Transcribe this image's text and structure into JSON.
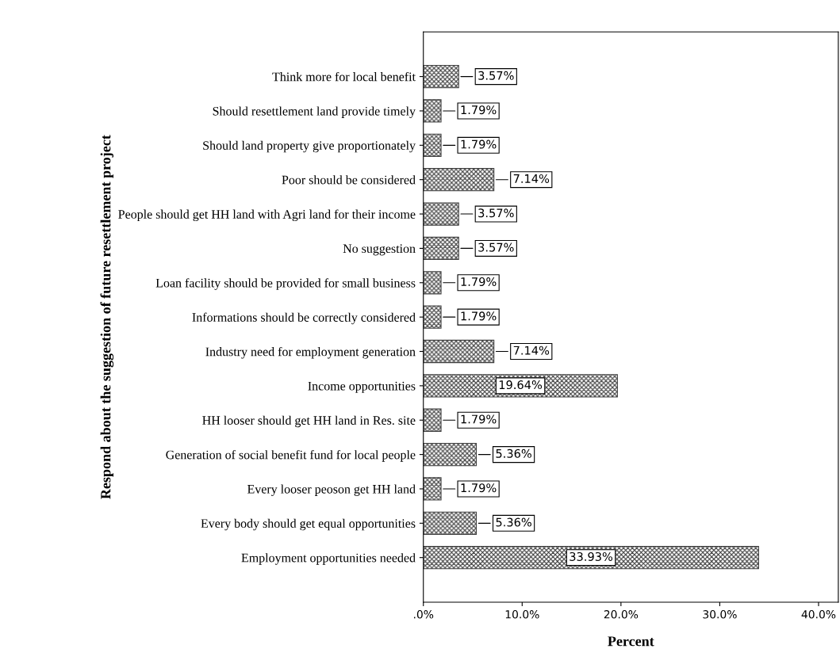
{
  "chart_data": {
    "type": "bar",
    "orientation": "horizontal",
    "xlabel": "Percent",
    "ylabel": "Respond about the suggestion of future resettlement project",
    "categories": [
      "Think more for local benefit",
      "Should resettlement land provide timely",
      "Should land property give proportionately",
      "Poor should be considered",
      "People should get HH land with Agri land for their income",
      "No suggestion",
      "Loan facility should be provided for small business",
      "Informations should be correctly considered",
      "Industry need for employment generation",
      "Income opportunities",
      "HH looser should get HH land in Res. site",
      "Generation of social benefit fund for local people",
      "Every looser peoson get HH land",
      "Every body should get equal opportunities",
      "Employment opportunities needed"
    ],
    "values": [
      3.57,
      1.79,
      1.79,
      7.14,
      3.57,
      3.57,
      1.79,
      1.79,
      7.14,
      19.64,
      1.79,
      5.36,
      1.79,
      5.36,
      33.93
    ],
    "value_labels": [
      "3.57%",
      "1.79%",
      "1.79%",
      "7.14%",
      "3.57%",
      "3.57%",
      "1.79%",
      "1.79%",
      "7.14%",
      "19.64%",
      "1.79%",
      "5.36%",
      "1.79%",
      "5.36%",
      "33.93%"
    ],
    "color": "#404040",
    "xlim": [
      0,
      42
    ],
    "xticks": [
      {
        "value": 0,
        "label": ".0%"
      },
      {
        "value": 10,
        "label": "10.0%"
      },
      {
        "value": 20,
        "label": "20.0%"
      },
      {
        "value": 30,
        "label": "30.0%"
      },
      {
        "value": 40,
        "label": "40.0%"
      }
    ],
    "grid": false
  }
}
